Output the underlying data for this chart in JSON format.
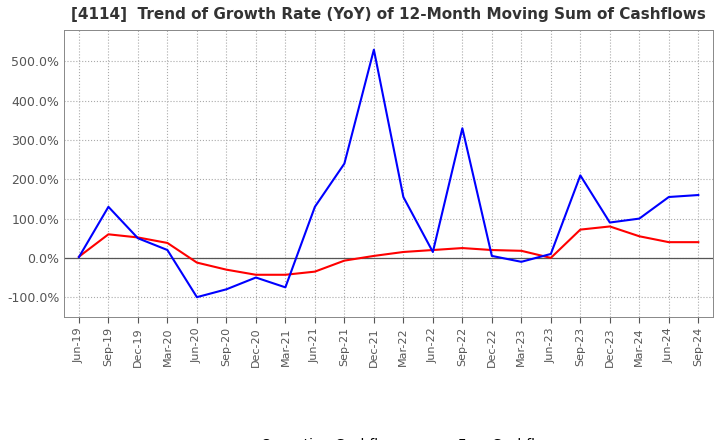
{
  "title": "[4114]  Trend of Growth Rate (YoY) of 12-Month Moving Sum of Cashflows",
  "operating_color": "#ff0000",
  "free_color": "#0000ff",
  "background_color": "#ffffff",
  "plot_bg_color": "#ffffff",
  "grid_color": "#aaaaaa",
  "zero_line_color": "#555555",
  "x_labels": [
    "Jun-19",
    "Sep-19",
    "Dec-19",
    "Mar-20",
    "Jun-20",
    "Sep-20",
    "Dec-20",
    "Mar-21",
    "Jun-21",
    "Sep-21",
    "Dec-21",
    "Mar-22",
    "Jun-22",
    "Sep-22",
    "Dec-22",
    "Mar-23",
    "Jun-23",
    "Sep-23",
    "Dec-23",
    "Mar-24",
    "Jun-24",
    "Sep-24"
  ],
  "ytick_labels": [
    "-100.0%",
    "0.0%",
    "100.0%",
    "200.0%",
    "300.0%",
    "400.0%",
    "500.0%"
  ],
  "ytick_values": [
    -1.0,
    0.0,
    1.0,
    2.0,
    3.0,
    4.0,
    5.0
  ],
  "ylim_low": -1.5,
  "ylim_high": 5.8,
  "operating_cashflow": [
    0.03,
    0.6,
    0.52,
    0.38,
    -0.12,
    -0.3,
    -0.43,
    -0.43,
    -0.35,
    -0.07,
    0.05,
    0.15,
    0.2,
    0.25,
    0.2,
    0.18,
    0.0,
    0.72,
    0.8,
    0.55,
    0.4,
    0.4
  ],
  "free_cashflow": [
    0.02,
    1.3,
    0.5,
    0.2,
    -1.0,
    -0.8,
    -0.5,
    -0.75,
    1.3,
    2.4,
    5.3,
    1.55,
    0.15,
    3.3,
    0.05,
    -0.1,
    0.1,
    2.1,
    0.9,
    1.0,
    1.55,
    1.6
  ]
}
